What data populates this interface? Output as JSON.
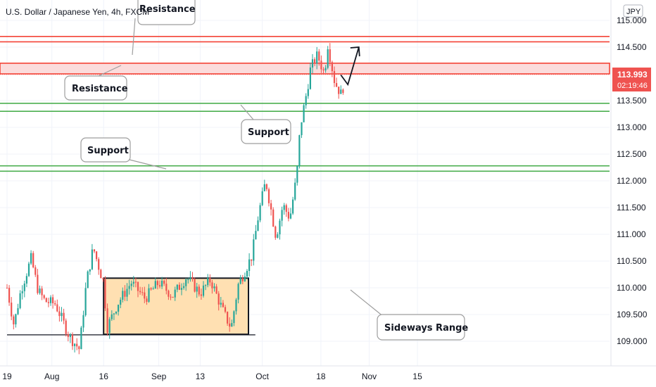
{
  "chart_data": {
    "type": "candlestick",
    "title": "U.S. Dollar / Japanese Yen, 4h, FXCM",
    "currency": "JPY",
    "ylim": [
      108.7,
      115.15
    ],
    "y_ticks": [
      "115.000",
      "114.500",
      "114.000",
      "113.500",
      "113.000",
      "112.500",
      "112.000",
      "111.500",
      "111.000",
      "110.500",
      "110.000",
      "109.500",
      "109.000"
    ],
    "x_ticks": [
      "19",
      "Aug",
      "16",
      "Sep",
      "13",
      "Oct",
      "18",
      "Nov",
      "15"
    ],
    "last_price": {
      "value": "113.993",
      "countdown": "02:19:46",
      "color": "#ef5350"
    },
    "price_path": [
      [
        "2021-07-19",
        110.0
      ],
      [
        "2021-07-21",
        109.3
      ],
      [
        "2021-07-23",
        109.95
      ],
      [
        "2021-07-26",
        110.55
      ],
      [
        "2021-07-28",
        109.95
      ],
      [
        "2021-07-30",
        109.75
      ],
      [
        "2021-08-02",
        109.7
      ],
      [
        "2021-08-04",
        109.4
      ],
      [
        "2021-08-06",
        109.1
      ],
      [
        "2021-08-09",
        108.85
      ],
      [
        "2021-08-11",
        110.1
      ],
      [
        "2021-08-13",
        110.75
      ],
      [
        "2021-08-15",
        110.3
      ],
      [
        "2021-08-16",
        110.1
      ],
      [
        "2021-08-17",
        109.25
      ],
      [
        "2021-08-20",
        109.7
      ],
      [
        "2021-08-24",
        110.1
      ],
      [
        "2021-08-28",
        109.8
      ],
      [
        "2021-09-01",
        110.1
      ],
      [
        "2021-09-05",
        109.85
      ],
      [
        "2021-09-09",
        110.2
      ],
      [
        "2021-09-13",
        109.9
      ],
      [
        "2021-09-16",
        110.15
      ],
      [
        "2021-09-20",
        109.5
      ],
      [
        "2021-09-22",
        109.25
      ],
      [
        "2021-09-24",
        110.05
      ],
      [
        "2021-09-28",
        110.6
      ],
      [
        "2021-09-30",
        111.4
      ],
      [
        "2021-10-02",
        112.0
      ],
      [
        "2021-10-04",
        111.3
      ],
      [
        "2021-10-05",
        110.95
      ],
      [
        "2021-10-07",
        111.55
      ],
      [
        "2021-10-09",
        111.3
      ],
      [
        "2021-10-11",
        112.1
      ],
      [
        "2021-10-12",
        113.0
      ],
      [
        "2021-10-14",
        113.7
      ],
      [
        "2021-10-15",
        114.1
      ],
      [
        "2021-10-17",
        114.35
      ],
      [
        "2021-10-19",
        114.0
      ],
      [
        "2021-10-20",
        114.55
      ],
      [
        "2021-10-22",
        113.85
      ],
      [
        "2021-10-24",
        113.6
      ],
      [
        "2021-10-25",
        113.95
      ]
    ],
    "horizontal_levels": [
      {
        "kind": "resistance",
        "value": 114.7,
        "color": "#f44336"
      },
      {
        "kind": "resistance",
        "value": 114.6,
        "color": "#f44336"
      },
      {
        "kind": "resistance-zone",
        "from": 114.0,
        "to": 114.2,
        "color": "#f44336"
      },
      {
        "kind": "support",
        "value": 113.45,
        "color": "#4caf50"
      },
      {
        "kind": "support",
        "value": 113.3,
        "color": "#4caf50"
      },
      {
        "kind": "support",
        "value": 112.28,
        "color": "#4caf50"
      },
      {
        "kind": "support",
        "value": 112.18,
        "color": "#4caf50"
      },
      {
        "kind": "range-floor",
        "value": 109.12,
        "color": "#131722"
      }
    ],
    "range_box": {
      "from": "2021-08-16",
      "to": "2021-09-27",
      "low": 109.13,
      "high": 110.18,
      "fill": "#ffe0b2"
    },
    "projection_arrow": [
      [
        "2021-10-25",
        113.88
      ],
      [
        "2021-10-29",
        114.5
      ]
    ],
    "annotations": [
      {
        "label": "Resistance",
        "points_to": 114.7
      },
      {
        "label": "Resistance",
        "points_to": 114.1
      },
      {
        "label": "Support",
        "points_to": 113.45
      },
      {
        "label": "Support",
        "points_to": 112.23
      },
      {
        "label": "Sideways Range",
        "points_to": 110.0
      }
    ],
    "colors": {
      "up": "#26a69a",
      "down": "#ef5350"
    }
  }
}
